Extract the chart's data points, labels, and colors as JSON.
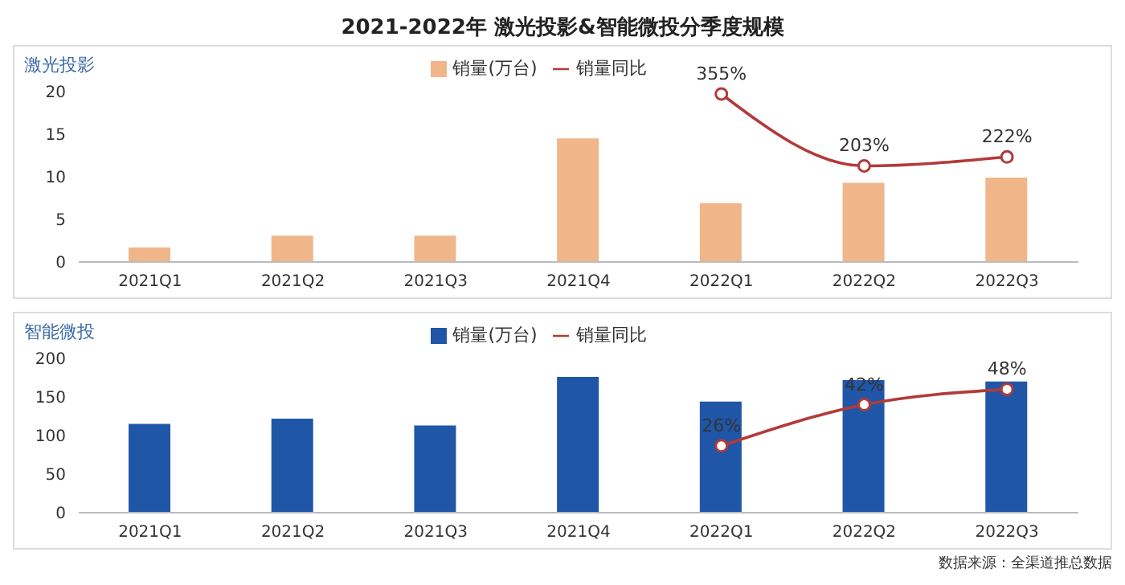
{
  "chart_data": [
    {
      "type": "bar",
      "title": "2021-2022年 激光投影&智能微投分季度规模",
      "subtitle": "激光投影",
      "categories": [
        "2021Q1",
        "2021Q2",
        "2021Q3",
        "2021Q4",
        "2022Q1",
        "2022Q2",
        "2022Q3"
      ],
      "ylim": [
        0,
        20
      ],
      "yticks": [
        0,
        5,
        10,
        15,
        20
      ],
      "grid": false,
      "legend": "top",
      "series": [
        {
          "name": "销量(万台)",
          "color": "#f0b68a",
          "values": [
            1.7,
            3.1,
            3.1,
            14.5,
            6.9,
            9.3,
            9.9
          ]
        },
        {
          "name": "销量同比",
          "type": "line",
          "axis": "y2",
          "color": "#b23a3a",
          "marker": "circle",
          "values": [
            null,
            null,
            null,
            null,
            355,
            203,
            222
          ],
          "value_labels": [
            null,
            null,
            null,
            null,
            "355%",
            "203%",
            "222%"
          ]
        }
      ]
    },
    {
      "type": "bar",
      "title": "智能微投",
      "categories": [
        "2021Q1",
        "2021Q2",
        "2021Q3",
        "2021Q4",
        "2022Q1",
        "2022Q2",
        "2022Q3"
      ],
      "ylim": [
        0,
        200
      ],
      "yticks": [
        0,
        50,
        100,
        150,
        200
      ],
      "grid": false,
      "legend": "top",
      "annotations": [
        "数据来源：全渠道推总数据"
      ],
      "series": [
        {
          "name": "销量(万台)",
          "color": "#1f56a8",
          "values": [
            115,
            122,
            113,
            176,
            144,
            172,
            170
          ]
        },
        {
          "name": "销量同比",
          "type": "line",
          "axis": "y2",
          "color": "#b23a3a",
          "marker": "circle",
          "values": [
            null,
            null,
            null,
            null,
            26,
            42,
            48
          ],
          "value_labels": [
            null,
            null,
            null,
            null,
            "26%",
            "42%",
            "48%"
          ]
        }
      ]
    }
  ]
}
